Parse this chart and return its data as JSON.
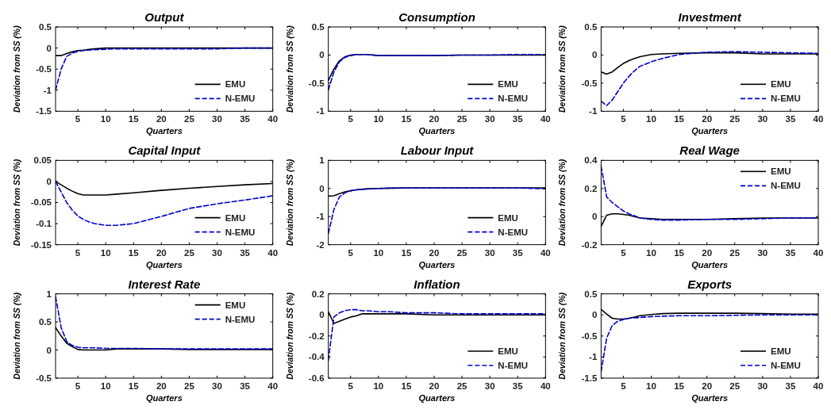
{
  "chart_data": [
    {
      "type": "line",
      "title": "Output",
      "xlabel": "Quarters",
      "ylabel": "Deviation from SS (%)",
      "x": [
        1,
        2,
        3,
        4,
        5,
        6,
        7,
        8,
        10,
        12,
        15,
        20,
        25,
        30,
        35,
        40
      ],
      "xlim": [
        1,
        40
      ],
      "xticks": [
        5,
        10,
        15,
        20,
        25,
        30,
        35,
        40
      ],
      "ylim": [
        -1.5,
        0.5
      ],
      "yticks": [
        -1.5,
        -1,
        -0.5,
        0,
        0.5
      ],
      "legend": "bottom right",
      "series": [
        {
          "name": "EMU",
          "color": "#000000",
          "line_style": "solid",
          "values": [
            -0.18,
            -0.18,
            -0.13,
            -0.09,
            -0.06,
            -0.05,
            -0.03,
            -0.02,
            0,
            0,
            0,
            0,
            0,
            0,
            0,
            0
          ]
        },
        {
          "name": "N-EMU",
          "color": "#0000cc",
          "line_style": "dashed",
          "values": [
            -1.0,
            -0.5,
            -0.2,
            -0.12,
            -0.08,
            -0.06,
            -0.05,
            -0.04,
            -0.03,
            -0.02,
            -0.02,
            -0.02,
            -0.02,
            -0.02,
            0,
            0
          ]
        }
      ]
    },
    {
      "type": "line",
      "title": "Consumption",
      "xlabel": "Quarters",
      "ylabel": "Deviation from SS (%)",
      "x": [
        1,
        2,
        3,
        4,
        5,
        6,
        7,
        8,
        10,
        12,
        15,
        20,
        25,
        30,
        35,
        40
      ],
      "xlim": [
        1,
        40
      ],
      "xticks": [
        5,
        10,
        15,
        20,
        25,
        30,
        35,
        40
      ],
      "ylim": [
        -1,
        0.5
      ],
      "yticks": [
        -1,
        -0.5,
        0,
        0.5
      ],
      "legend": "bottom right",
      "series": [
        {
          "name": "EMU",
          "color": "#000000",
          "line_style": "solid",
          "values": [
            -0.45,
            -0.25,
            -0.1,
            -0.03,
            0,
            0.01,
            0.01,
            0.01,
            -0.01,
            -0.01,
            -0.01,
            -0.01,
            0,
            0,
            0,
            0
          ]
        },
        {
          "name": "N-EMU",
          "color": "#0000cc",
          "line_style": "dashed",
          "values": [
            -0.62,
            -0.3,
            -0.12,
            -0.04,
            -0.01,
            0.01,
            0.01,
            0.01,
            -0.01,
            -0.01,
            -0.01,
            -0.01,
            0,
            0,
            0.01,
            0.01
          ]
        }
      ]
    },
    {
      "type": "line",
      "title": "Investment",
      "xlabel": "Quarters",
      "ylabel": "Deviation from SS (%)",
      "x": [
        1,
        2,
        3,
        4,
        5,
        6,
        7,
        8,
        10,
        12,
        15,
        20,
        25,
        30,
        35,
        40
      ],
      "xlim": [
        1,
        40
      ],
      "xticks": [
        5,
        10,
        15,
        20,
        25,
        30,
        35,
        40
      ],
      "ylim": [
        -1,
        0.5
      ],
      "yticks": [
        -1,
        -0.5,
        0,
        0.5
      ],
      "legend": "bottom right",
      "series": [
        {
          "name": "EMU",
          "color": "#000000",
          "line_style": "solid",
          "values": [
            -0.3,
            -0.34,
            -0.3,
            -0.22,
            -0.15,
            -0.1,
            -0.06,
            -0.03,
            0.01,
            0.02,
            0.03,
            0.04,
            0.04,
            0.02,
            0.02,
            0.02
          ]
        },
        {
          "name": "N-EMU",
          "color": "#0000cc",
          "line_style": "dashed",
          "values": [
            -0.82,
            -0.9,
            -0.8,
            -0.65,
            -0.5,
            -0.38,
            -0.28,
            -0.2,
            -0.12,
            -0.06,
            0.01,
            0.05,
            0.06,
            0.05,
            0.04,
            0.03
          ]
        }
      ]
    },
    {
      "type": "line",
      "title": "Capital Input",
      "xlabel": "Quarters",
      "ylabel": "Deviation from SS (%)",
      "x": [
        1,
        2,
        3,
        4,
        5,
        6,
        7,
        8,
        10,
        12,
        15,
        20,
        25,
        30,
        35,
        40
      ],
      "xlim": [
        1,
        40
      ],
      "xticks": [
        5,
        10,
        15,
        20,
        25,
        30,
        35,
        40
      ],
      "ylim": [
        -0.15,
        0.05
      ],
      "yticks": [
        -0.15,
        -0.1,
        -0.05,
        0,
        0.05
      ],
      "legend": "bottom right",
      "series": [
        {
          "name": "EMU",
          "color": "#000000",
          "line_style": "solid",
          "values": [
            0,
            -0.008,
            -0.016,
            -0.023,
            -0.029,
            -0.032,
            -0.032,
            -0.032,
            -0.032,
            -0.03,
            -0.027,
            -0.021,
            -0.016,
            -0.012,
            -0.008,
            -0.005
          ]
        },
        {
          "name": "N-EMU",
          "color": "#0000cc",
          "line_style": "dashed",
          "values": [
            0,
            -0.025,
            -0.05,
            -0.068,
            -0.082,
            -0.09,
            -0.096,
            -0.1,
            -0.104,
            -0.104,
            -0.1,
            -0.083,
            -0.064,
            -0.053,
            -0.044,
            -0.034
          ]
        }
      ]
    },
    {
      "type": "line",
      "title": "Labour Input",
      "xlabel": "Quarters",
      "ylabel": "Deviation from SS (%)",
      "x": [
        1,
        2,
        3,
        4,
        5,
        6,
        7,
        8,
        10,
        12,
        15,
        20,
        25,
        30,
        35,
        40
      ],
      "xlim": [
        1,
        40
      ],
      "xticks": [
        5,
        10,
        15,
        20,
        25,
        30,
        35,
        40
      ],
      "ylim": [
        -2,
        1
      ],
      "yticks": [
        -2,
        -1,
        0,
        1
      ],
      "legend": "bottom right",
      "series": [
        {
          "name": "EMU",
          "color": "#000000",
          "line_style": "solid",
          "values": [
            -0.27,
            -0.26,
            -0.18,
            -0.12,
            -0.08,
            -0.05,
            -0.03,
            -0.01,
            0,
            0.01,
            0.02,
            0.02,
            0.02,
            0.02,
            0.02,
            0.02
          ]
        },
        {
          "name": "N-EMU",
          "color": "#0000cc",
          "line_style": "dashed",
          "values": [
            -1.6,
            -0.75,
            -0.3,
            -0.15,
            -0.08,
            -0.05,
            -0.03,
            -0.02,
            0,
            0.01,
            0.02,
            0.02,
            0.02,
            0.02,
            0.02,
            -0.01
          ]
        }
      ]
    },
    {
      "type": "line",
      "title": "Real Wage",
      "xlabel": "Quarters",
      "ylabel": "Deviation from SS (%)",
      "x": [
        1,
        2,
        3,
        4,
        5,
        6,
        7,
        8,
        10,
        12,
        15,
        20,
        25,
        30,
        35,
        40
      ],
      "xlim": [
        1,
        40
      ],
      "xticks": [
        5,
        10,
        15,
        20,
        25,
        30,
        35,
        40
      ],
      "ylim": [
        -0.2,
        0.4
      ],
      "yticks": [
        -0.2,
        0,
        0.2,
        0.4
      ],
      "legend": "top right",
      "series": [
        {
          "name": "EMU",
          "color": "#000000",
          "line_style": "solid",
          "values": [
            -0.07,
            0.01,
            0.02,
            0.02,
            0.015,
            0.01,
            0,
            -0.01,
            -0.015,
            -0.02,
            -0.02,
            -0.02,
            -0.015,
            -0.01,
            -0.01,
            -0.01
          ]
        },
        {
          "name": "N-EMU",
          "color": "#0000cc",
          "line_style": "dashed",
          "values": [
            0.36,
            0.14,
            0.1,
            0.07,
            0.04,
            0.02,
            0.005,
            -0.01,
            -0.02,
            -0.025,
            -0.025,
            -0.02,
            -0.02,
            -0.015,
            -0.01,
            -0.01
          ]
        }
      ]
    },
    {
      "type": "line",
      "title": "Interest Rate",
      "xlabel": "Quarters",
      "ylabel": "Deviation from SS (%)",
      "x": [
        1,
        2,
        3,
        4,
        5,
        6,
        7,
        8,
        10,
        12,
        15,
        20,
        25,
        30,
        35,
        40
      ],
      "xlim": [
        1,
        40
      ],
      "xticks": [
        5,
        10,
        15,
        20,
        25,
        30,
        35,
        40
      ],
      "ylim": [
        -0.5,
        1
      ],
      "yticks": [
        -0.5,
        0,
        0.5,
        1
      ],
      "legend": "top right",
      "series": [
        {
          "name": "EMU",
          "color": "#000000",
          "line_style": "solid",
          "values": [
            0.4,
            0.25,
            0.12,
            0.06,
            0.01,
            0,
            0,
            0,
            0,
            0.02,
            0.02,
            0.02,
            0.01,
            0.01,
            0.01,
            0.01
          ]
        },
        {
          "name": "N-EMU",
          "color": "#0000cc",
          "line_style": "dashed",
          "values": [
            0.95,
            0.4,
            0.15,
            0.08,
            0.05,
            0.04,
            0.04,
            0.04,
            0.03,
            0.03,
            0.03,
            0.02,
            0.02,
            0.02,
            0.02,
            0.02
          ]
        }
      ]
    },
    {
      "type": "line",
      "title": "Inflation",
      "xlabel": "Quarters",
      "ylabel": "Deviation from SS (%)",
      "x": [
        1,
        2,
        3,
        4,
        5,
        6,
        7,
        8,
        10,
        12,
        15,
        20,
        25,
        30,
        35,
        40
      ],
      "xlim": [
        1,
        40
      ],
      "xticks": [
        5,
        10,
        15,
        20,
        25,
        30,
        35,
        40
      ],
      "ylim": [
        -0.6,
        0.2
      ],
      "yticks": [
        -0.6,
        -0.4,
        -0.2,
        0,
        0.2
      ],
      "legend": "bottom right",
      "series": [
        {
          "name": "EMU",
          "color": "#000000",
          "line_style": "solid",
          "values": [
            0.03,
            -0.08,
            -0.06,
            -0.04,
            -0.02,
            -0.01,
            0.01,
            0.01,
            0.01,
            0.01,
            0.01,
            0,
            0,
            0,
            0,
            0
          ]
        },
        {
          "name": "N-EMU",
          "color": "#0000cc",
          "line_style": "dashed",
          "values": [
            -0.43,
            -0.02,
            0.02,
            0.04,
            0.05,
            0.05,
            0.04,
            0.04,
            0.03,
            0.03,
            0.02,
            0.02,
            0.01,
            0.01,
            0.01,
            0.01
          ]
        }
      ]
    },
    {
      "type": "line",
      "title": "Exports",
      "xlabel": "Quarters",
      "ylabel": "Deviation from SS (%)",
      "x": [
        1,
        2,
        3,
        4,
        5,
        6,
        7,
        8,
        10,
        12,
        15,
        20,
        25,
        30,
        35,
        40
      ],
      "xlim": [
        1,
        40
      ],
      "xticks": [
        5,
        10,
        15,
        20,
        25,
        30,
        35,
        40
      ],
      "ylim": [
        -1.5,
        0.5
      ],
      "yticks": [
        -1.5,
        -1,
        -0.5,
        0,
        0.5
      ],
      "legend": "bottom right",
      "series": [
        {
          "name": "EMU",
          "color": "#000000",
          "line_style": "solid",
          "values": [
            0.13,
            0.02,
            -0.08,
            -0.1,
            -0.1,
            -0.08,
            -0.05,
            -0.02,
            0.01,
            0.03,
            0.04,
            0.04,
            0.04,
            0.03,
            0.02,
            0.02
          ]
        },
        {
          "name": "N-EMU",
          "color": "#0000cc",
          "line_style": "dashed",
          "values": [
            -1.35,
            -0.55,
            -0.25,
            -0.15,
            -0.11,
            -0.08,
            -0.07,
            -0.06,
            -0.04,
            -0.03,
            -0.02,
            -0.02,
            -0.01,
            0,
            0,
            0
          ]
        }
      ]
    }
  ]
}
